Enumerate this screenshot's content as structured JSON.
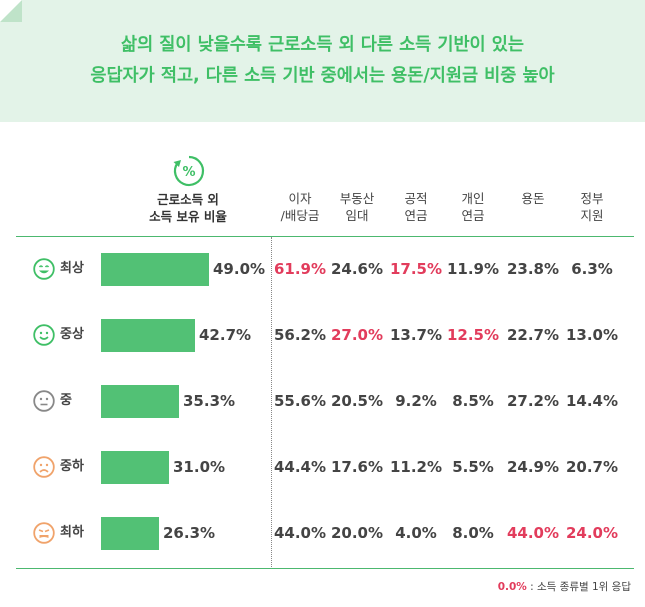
{
  "title": {
    "line1": "삶의 질이 낮을수록 근로소득 외 다른 소득 기반이 있는",
    "line2": "응답자가 적고, 다른 소득 기반 중에서는 용돈/지원금 비중 높아"
  },
  "colors": {
    "accent": "#3fbf66",
    "bar": "#52c175",
    "highlight": "#e23c5c",
    "banner": "#e3f3e8"
  },
  "chart_data": {
    "type": "table",
    "bar_header": {
      "line1": "근로소득 외",
      "line2": "소득 보유 비율"
    },
    "bar_header_icon": "percent-cycle-icon",
    "columns": [
      "이자\n/배당금",
      "부동산\n임대",
      "공적\n연금",
      "개인\n연금",
      "용돈",
      "정부\n지원"
    ],
    "rows": [
      {
        "label": "최상",
        "face": "very-happy-face-icon",
        "bar_value": 49.0,
        "bar_text": "49.0%",
        "cells": [
          "61.9%",
          "24.6%",
          "17.5%",
          "11.9%",
          "23.8%",
          "6.3%"
        ],
        "top": [
          true,
          false,
          true,
          false,
          false,
          false
        ]
      },
      {
        "label": "중상",
        "face": "smile-face-icon",
        "bar_value": 42.7,
        "bar_text": "42.7%",
        "cells": [
          "56.2%",
          "27.0%",
          "13.7%",
          "12.5%",
          "22.7%",
          "13.0%"
        ],
        "top": [
          false,
          true,
          false,
          true,
          false,
          false
        ]
      },
      {
        "label": "중",
        "face": "neutral-face-icon",
        "bar_value": 35.3,
        "bar_text": "35.3%",
        "cells": [
          "55.6%",
          "20.5%",
          "9.2%",
          "8.5%",
          "27.2%",
          "14.4%"
        ],
        "top": [
          false,
          false,
          false,
          false,
          false,
          false
        ]
      },
      {
        "label": "중하",
        "face": "sad-face-icon",
        "bar_value": 31.0,
        "bar_text": "31.0%",
        "cells": [
          "44.4%",
          "17.6%",
          "11.2%",
          "5.5%",
          "24.9%",
          "20.7%"
        ],
        "top": [
          false,
          false,
          false,
          false,
          false,
          false
        ]
      },
      {
        "label": "최하",
        "face": "very-sad-face-icon",
        "bar_value": 26.3,
        "bar_text": "26.3%",
        "cells": [
          "44.0%",
          "20.0%",
          "4.0%",
          "8.0%",
          "44.0%",
          "24.0%"
        ],
        "top": [
          false,
          false,
          false,
          false,
          true,
          true
        ]
      }
    ],
    "legend": {
      "key": "0.0%",
      "text": " : 소득 종류별 1위 응답"
    }
  }
}
